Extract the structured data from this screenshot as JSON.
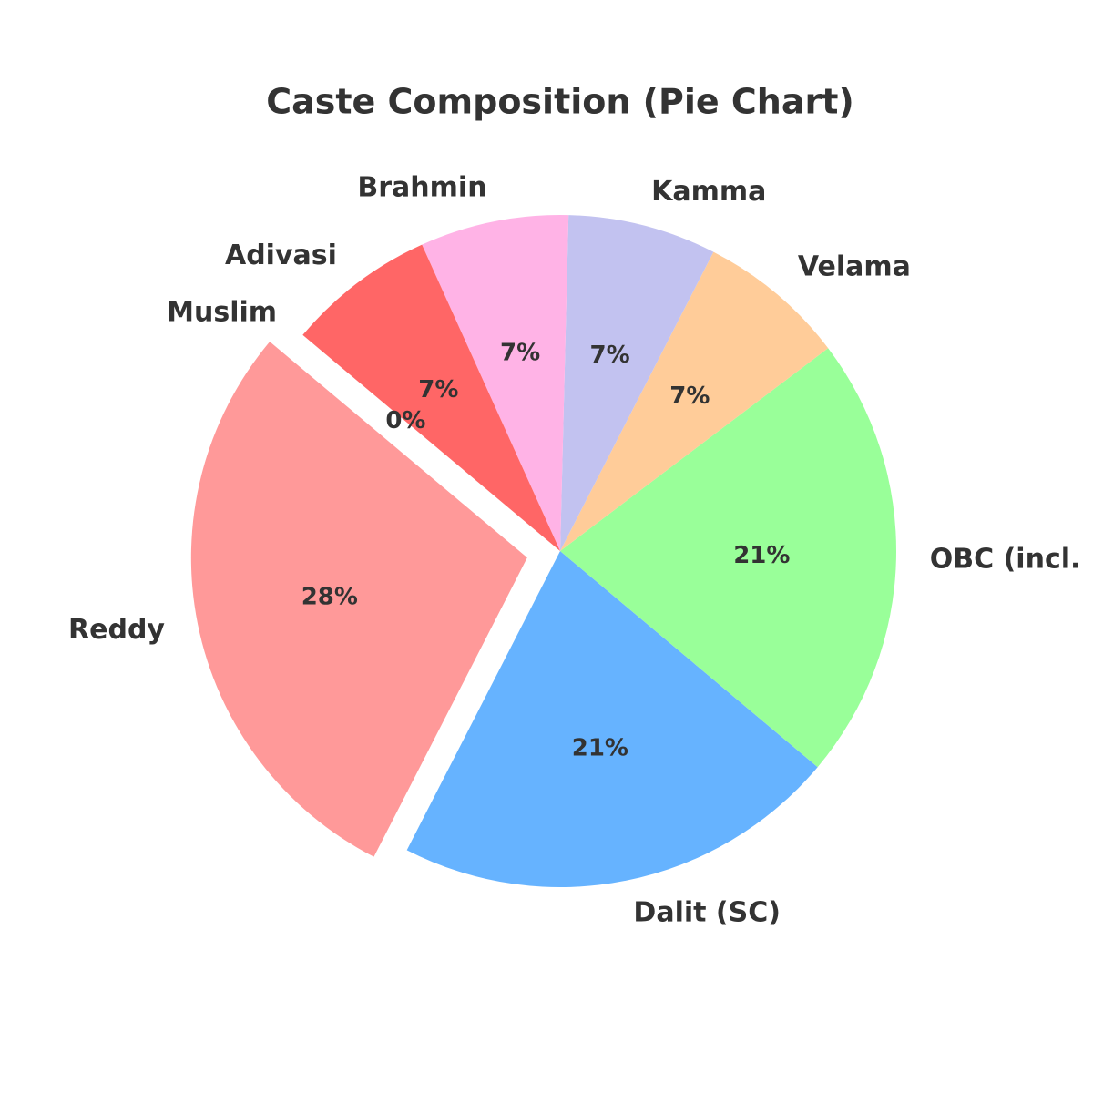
{
  "chart_data": {
    "type": "pie",
    "title": "Caste Composition (Pie Chart)",
    "categories": [
      "Reddy",
      "Dalit (SC)",
      "OBC (incl.",
      "Velama",
      "Kamma",
      "Brahmin",
      "Adivasi",
      "Muslim"
    ],
    "values": [
      28,
      21,
      21,
      7,
      7,
      7,
      7,
      0
    ],
    "value_labels": [
      "28%",
      "21%",
      "21%",
      "7%",
      "7%",
      "7%",
      "7%",
      "0%"
    ],
    "colors": [
      "#ff9999",
      "#66b3ff",
      "#99ff99",
      "#ffcc99",
      "#c2c2f0",
      "#ffb3e6",
      "#ff6666",
      "#c2f0c2"
    ],
    "exploded": [
      "Reddy"
    ]
  }
}
